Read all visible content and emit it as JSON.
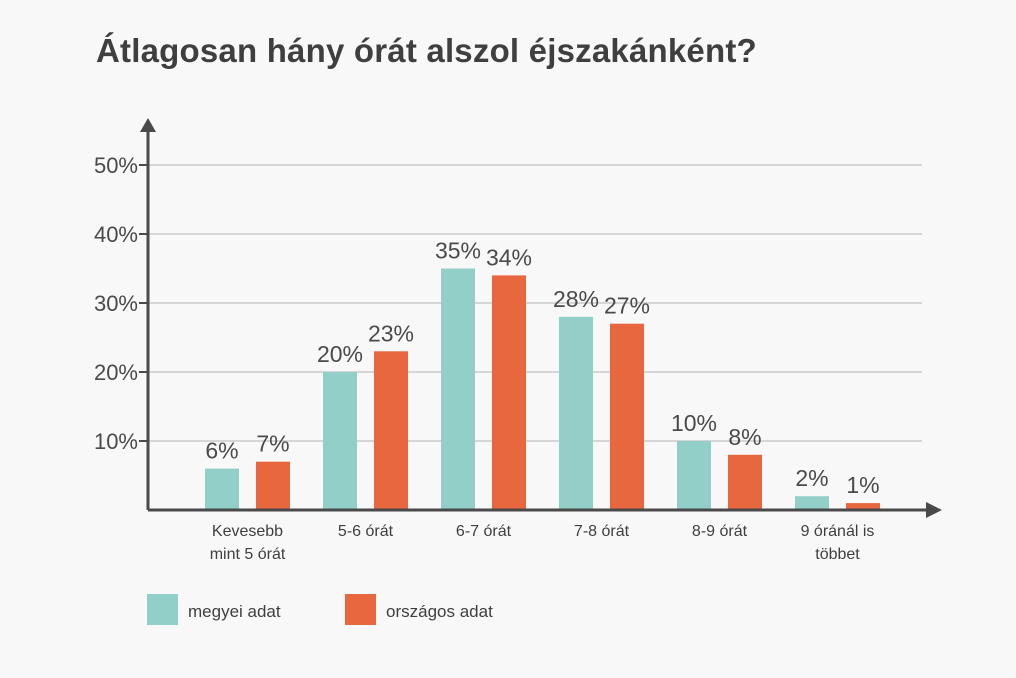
{
  "chart_data": {
    "type": "bar",
    "title": "Átlagosan hány órát alszol éjszakánként?",
    "xlabel": "",
    "ylabel": "",
    "ylim": [
      0,
      50
    ],
    "yticks": [
      {
        "value": 10,
        "label": "10%"
      },
      {
        "value": 20,
        "label": "20%"
      },
      {
        "value": 30,
        "label": "30%"
      },
      {
        "value": 40,
        "label": "40%"
      },
      {
        "value": 50,
        "label": "50%"
      }
    ],
    "grid": true,
    "legend_position": "bottom-left",
    "categories": [
      [
        "Kevesebb",
        "mint 5 órát"
      ],
      [
        "5-6 órát"
      ],
      [
        "6-7 órát"
      ],
      [
        "7-8 órát"
      ],
      [
        "8-9 órát"
      ],
      [
        "9 óránál is",
        "többet"
      ]
    ],
    "series": [
      {
        "name": "megyei adat",
        "color": "#92cfc8",
        "values": [
          6,
          20,
          35,
          28,
          10,
          2
        ],
        "labels": [
          "6%",
          "20%",
          "35%",
          "28%",
          "10%",
          "2%"
        ]
      },
      {
        "name": "országos adat",
        "color": "#e8673f",
        "values": [
          7,
          23,
          34,
          27,
          8,
          1
        ],
        "labels": [
          "7%",
          "23%",
          "34%",
          "27%",
          "8%",
          "1%"
        ]
      }
    ],
    "colors": {
      "axis": "#4a4a4a",
      "grid": "#d6d6d6"
    }
  }
}
